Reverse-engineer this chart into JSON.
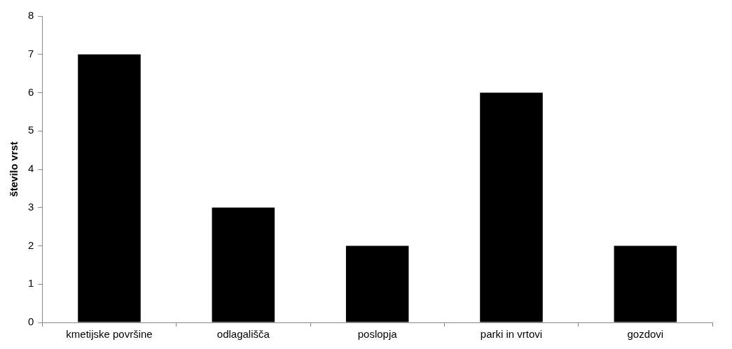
{
  "chart_data": {
    "type": "bar",
    "ylabel": "število vrst",
    "categories": [
      "kmetijske površine",
      "odlagališča",
      "poslopja",
      "parki in vrtovi",
      "gozdovi"
    ],
    "values": [
      7,
      3,
      2,
      6,
      2
    ],
    "color": "#000000",
    "ylim": [
      0,
      8
    ],
    "yticks": [
      0,
      1,
      2,
      3,
      4,
      5,
      6,
      7,
      8
    ],
    "grid": false,
    "legend": false
  }
}
